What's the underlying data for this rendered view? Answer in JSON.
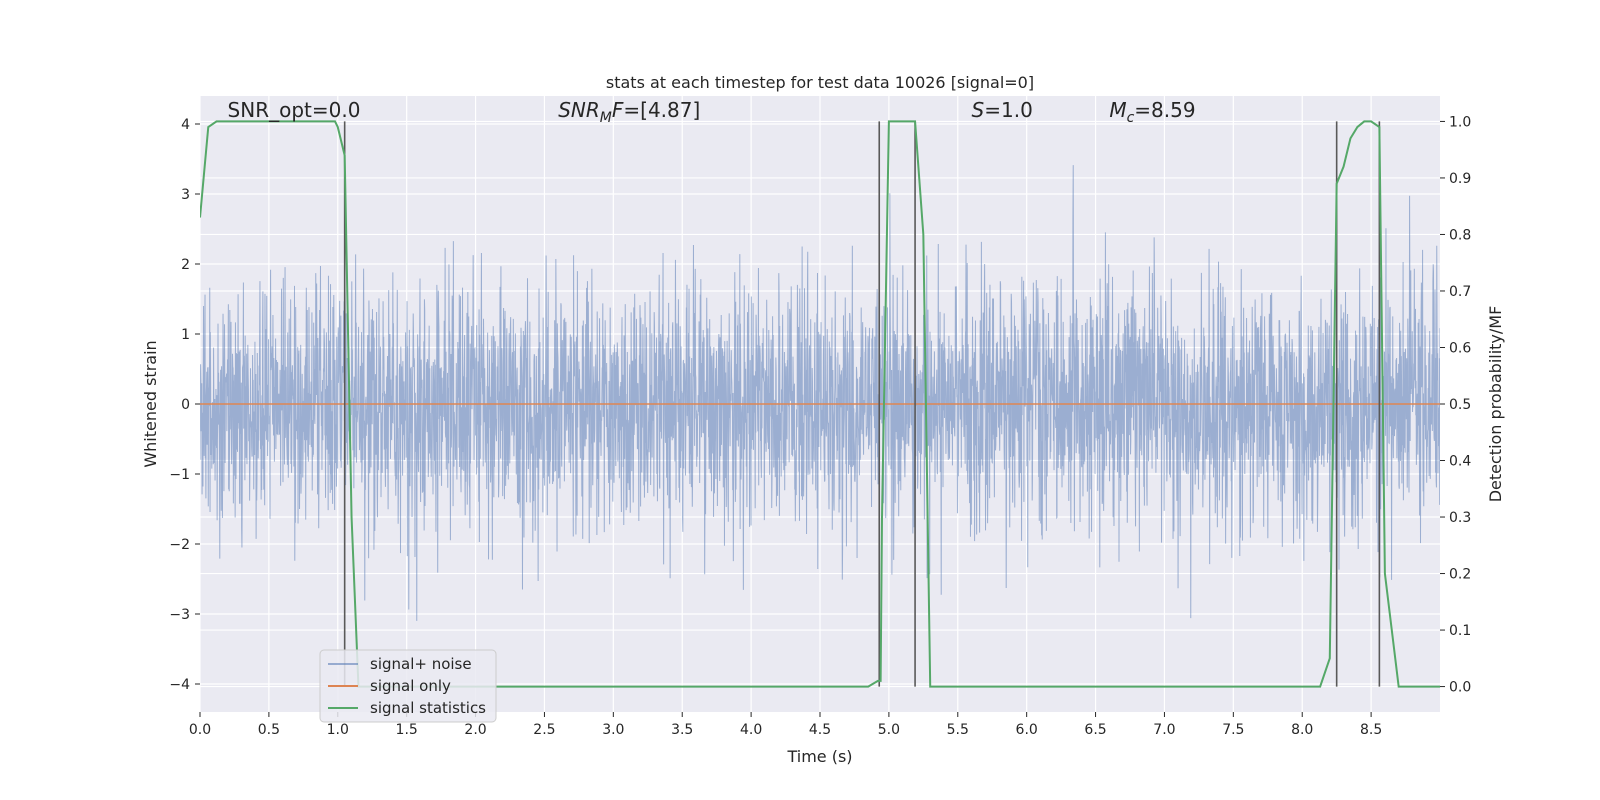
{
  "chart_data": {
    "type": "line",
    "title": "stats at each timestep for test data 10026 [signal=0]",
    "xlabel": "Time (s)",
    "ylabel": "Whitened strain",
    "y2label": "Detection probability/MF",
    "xlim": [
      0,
      9.0
    ],
    "ylim": [
      -4.4,
      4.4
    ],
    "y2lim": [
      -0.045,
      1.045
    ],
    "grid": true,
    "legend_position": "lower-left",
    "x_ticks": [
      0.0,
      0.5,
      1.0,
      1.5,
      2.0,
      2.5,
      3.0,
      3.5,
      4.0,
      4.5,
      5.0,
      5.5,
      6.0,
      6.5,
      7.0,
      7.5,
      8.0,
      8.5
    ],
    "x_tick_labels": [
      "0.0",
      "0.5",
      "1.0",
      "1.5",
      "2.0",
      "2.5",
      "3.0",
      "3.5",
      "4.0",
      "4.5",
      "5.0",
      "5.5",
      "6.0",
      "6.5",
      "7.0",
      "7.5",
      "8.0",
      "8.5"
    ],
    "y_ticks": [
      4,
      3,
      2,
      1,
      0,
      -1,
      -2,
      -3,
      -4
    ],
    "y_tick_labels": [
      "4",
      "3",
      "2",
      "1",
      "0",
      "−1",
      "−2",
      "−3",
      "−4"
    ],
    "y2_ticks": [
      1.0,
      0.9,
      0.8,
      0.7,
      0.6,
      0.5,
      0.4,
      0.3,
      0.2,
      0.1,
      0.0
    ],
    "y2_tick_labels": [
      "1.0",
      "0.9",
      "0.8",
      "0.7",
      "0.6",
      "0.5",
      "0.4",
      "0.3",
      "0.2",
      "0.1",
      "0.0"
    ],
    "annotations": [
      {
        "text": "SNR_opt=0.0",
        "x": 0.2,
        "y": 4.1
      },
      {
        "text": "SNR_MF=[4.87]",
        "x": 2.6,
        "y": 4.1
      },
      {
        "text": "S=1.0",
        "x": 5.6,
        "y": 4.1
      },
      {
        "text": "M_c=8.59",
        "x": 6.6,
        "y": 4.1
      }
    ],
    "series": [
      {
        "name": "signal+ noise",
        "color": "#4c72b0",
        "style": "dense noise trace",
        "approx_std": 0.85,
        "approx_range": [
          -3.6,
          4.0
        ]
      },
      {
        "name": "signal only",
        "color": "#dd8452",
        "x": [
          0.0,
          9.0
        ],
        "y": [
          0.0,
          0.0
        ]
      },
      {
        "name": "signal statistics",
        "color": "#55a868",
        "axis": "right",
        "x": [
          0.0,
          0.06,
          0.12,
          0.2,
          0.5,
          0.8,
          0.98,
          1.0,
          1.05,
          1.1,
          1.15,
          4.5,
          4.85,
          4.92,
          4.94,
          4.95,
          5.0,
          5.15,
          5.19,
          5.25,
          5.3,
          8.13,
          8.2,
          8.25,
          8.3,
          8.35,
          8.4,
          8.45,
          8.5,
          8.56,
          8.6,
          8.7,
          9.0
        ],
        "y": [
          0.83,
          0.99,
          1.0,
          1.0,
          1.0,
          1.0,
          1.0,
          0.99,
          0.94,
          0.3,
          0.0,
          0.0,
          0.0,
          0.01,
          0.01,
          0.3,
          1.0,
          1.0,
          1.0,
          0.8,
          0.0,
          0.0,
          0.05,
          0.89,
          0.92,
          0.97,
          0.99,
          1.0,
          1.0,
          0.99,
          0.2,
          0.0,
          0.0
        ]
      }
    ],
    "vertical_markers": {
      "color": "#595959",
      "y_range": [
        0.0,
        1.0
      ],
      "x": [
        1.05,
        4.93,
        5.19,
        8.25,
        8.56
      ]
    },
    "legend": [
      "signal+ noise",
      "signal only",
      "signal statistics"
    ]
  }
}
